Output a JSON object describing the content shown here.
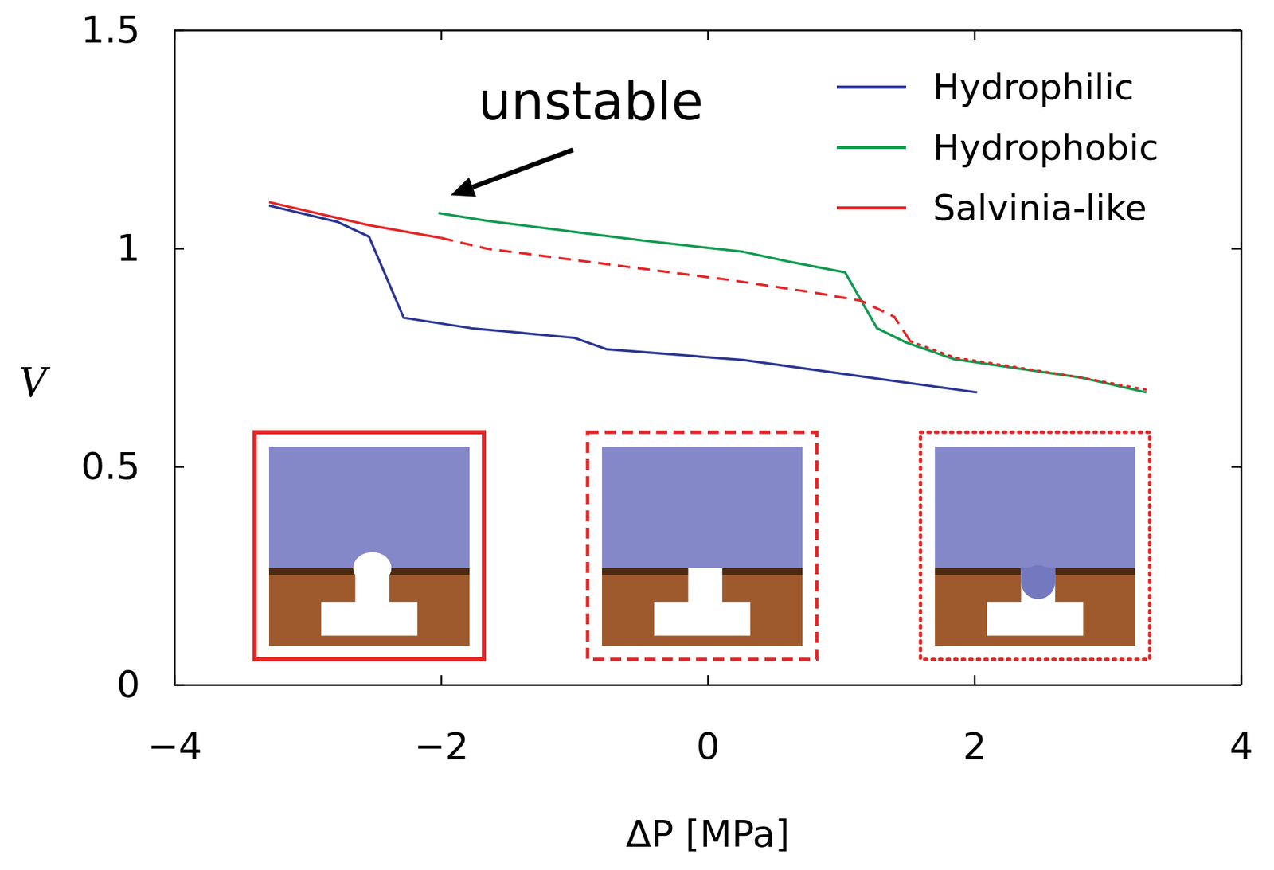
{
  "chart_data": {
    "type": "line",
    "x_label": "ΔP [MPa]",
    "y_label": "V",
    "xlim": [
      -4,
      4
    ],
    "xticks": [
      {
        "value": -4,
        "label": "−4"
      },
      {
        "value": -2,
        "label": "−2"
      },
      0,
      2,
      4
    ],
    "ylim": [
      0,
      1.5
    ],
    "yticks": [
      0,
      0.5,
      1,
      1.5
    ],
    "legend": "top-right",
    "annotation": "unstable",
    "series": [
      {
        "name": "Hydrophilic",
        "color": "#2b3590",
        "line_style": "solid",
        "x": [
          -3.29,
          -2.78,
          -2.54,
          -2.28,
          -1.77,
          -1.0,
          -0.76,
          0.27,
          0.79,
          2.02
        ],
        "values": [
          1.098,
          1.061,
          1.027,
          0.841,
          0.817,
          0.795,
          0.769,
          0.744,
          0.722,
          0.67
        ]
      },
      {
        "name": "Hydrophobic",
        "color": "#109a4e",
        "line_style": "solid",
        "x": [
          -2.02,
          -1.65,
          -0.49,
          0.27,
          0.6,
          1.03,
          1.27,
          1.49,
          1.85,
          2.8,
          3.29
        ],
        "values": [
          1.081,
          1.063,
          1.018,
          0.992,
          0.97,
          0.945,
          0.817,
          0.784,
          0.746,
          0.704,
          0.67
        ]
      },
      {
        "name": "Salvinia-like",
        "color": "#e32526",
        "line_style": "solid",
        "x": [
          -3.29,
          -2.78,
          -2.54,
          -2.0
        ],
        "values": [
          1.106,
          1.07,
          1.053,
          1.024
        ]
      },
      {
        "color": "#e32526",
        "line_style": "dashed",
        "x": [
          -2.0,
          -1.65,
          0.18,
          0.79,
          1.15,
          1.4,
          1.52
        ],
        "values": [
          1.024,
          0.999,
          0.927,
          0.899,
          0.88,
          0.843,
          0.787
        ]
      },
      {
        "color": "#e32526",
        "line_style": "dotted",
        "x": [
          1.52,
          1.85,
          2.8,
          3.29
        ],
        "values": [
          0.787,
          0.75,
          0.704,
          0.676
        ]
      }
    ]
  }
}
